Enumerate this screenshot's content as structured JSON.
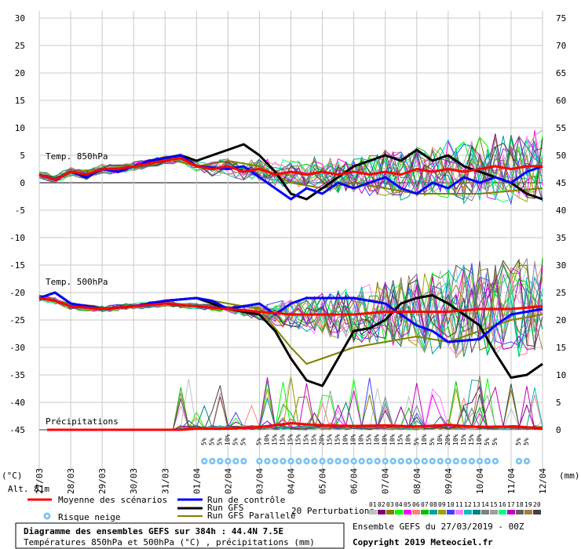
{
  "chart_data": {
    "type": "line",
    "left_axis": {
      "unit": "(°C)",
      "ticks": [
        30,
        25,
        20,
        15,
        10,
        5,
        0,
        -5,
        -10,
        -15,
        -20,
        -25,
        -30,
        -35,
        -40,
        -45
      ],
      "ylim": [
        -45,
        30
      ]
    },
    "right_axis": {
      "unit": "(mm)",
      "ticks": [
        75,
        70,
        65,
        60,
        55,
        50,
        45,
        40,
        35,
        30,
        25,
        20,
        15,
        10,
        5,
        0
      ],
      "ylim": [
        0,
        75
      ]
    },
    "x_labels": [
      "27/03",
      "28/03",
      "29/03",
      "30/03",
      "31/03",
      "01/04",
      "02/04",
      "03/04",
      "04/04",
      "05/04",
      "06/04",
      "07/04",
      "08/04",
      "09/04",
      "10/04",
      "11/04",
      "12/04"
    ],
    "panel_labels": {
      "t850": "Temp. 850hPa",
      "t500": "Temp. 500hPa",
      "precip": "Précipitations"
    },
    "alt_label": "Alt. 81m",
    "snow_risk": [
      {
        "day": 5.25,
        "pct": "5%"
      },
      {
        "day": 5.5,
        "pct": "5%"
      },
      {
        "day": 5.75,
        "pct": "5%"
      },
      {
        "day": 6.0,
        "pct": "10%"
      },
      {
        "day": 6.25,
        "pct": "5%"
      },
      {
        "day": 6.5,
        "pct": "5%"
      },
      {
        "day": 7.0,
        "pct": "5%"
      },
      {
        "day": 7.25,
        "pct": "10%"
      },
      {
        "day": 7.5,
        "pct": "15%"
      },
      {
        "day": 7.75,
        "pct": "15%"
      },
      {
        "day": 8.0,
        "pct": "15%"
      },
      {
        "day": 8.25,
        "pct": "15%"
      },
      {
        "day": 8.5,
        "pct": "15%"
      },
      {
        "day": 8.75,
        "pct": "15%"
      },
      {
        "day": 9.0,
        "pct": "20%"
      },
      {
        "day": 9.25,
        "pct": "15%"
      },
      {
        "day": 9.5,
        "pct": "15%"
      },
      {
        "day": 9.75,
        "pct": "10%"
      },
      {
        "day": 10.0,
        "pct": "10%"
      },
      {
        "day": 10.25,
        "pct": "10%"
      },
      {
        "day": 10.5,
        "pct": "15%"
      },
      {
        "day": 10.75,
        "pct": "10%"
      },
      {
        "day": 11.0,
        "pct": "10%"
      },
      {
        "day": 11.25,
        "pct": "10%"
      },
      {
        "day": 11.5,
        "pct": "15%"
      },
      {
        "day": 11.75,
        "pct": "10%"
      },
      {
        "day": 12.0,
        "pct": "5%"
      },
      {
        "day": 12.25,
        "pct": "10%"
      },
      {
        "day": 12.5,
        "pct": "5%"
      },
      {
        "day": 12.75,
        "pct": "10%"
      },
      {
        "day": 13.0,
        "pct": "20%"
      },
      {
        "day": 13.25,
        "pct": "10%"
      },
      {
        "day": 13.5,
        "pct": "15%"
      },
      {
        "day": 13.75,
        "pct": "15%"
      },
      {
        "day": 14.0,
        "pct": "10%"
      },
      {
        "day": 14.25,
        "pct": "5%"
      },
      {
        "day": 14.5,
        "pct": "5%"
      },
      {
        "day": 15.25,
        "pct": "5%"
      },
      {
        "day": 15.5,
        "pct": "5%"
      }
    ],
    "series": [
      {
        "name": "Moyenne des scénarios",
        "color": "#ff0000",
        "width": 3,
        "t850": [
          [
            0,
            1.5
          ],
          [
            0.5,
            0.5
          ],
          [
            1,
            2
          ],
          [
            1.5,
            1.5
          ],
          [
            2,
            2.5
          ],
          [
            2.5,
            2.5
          ],
          [
            3,
            3
          ],
          [
            3.5,
            3.5
          ],
          [
            4,
            4
          ],
          [
            4.5,
            4.5
          ],
          [
            5,
            3
          ],
          [
            5.5,
            2.5
          ],
          [
            6,
            3
          ],
          [
            6.5,
            2
          ],
          [
            7,
            2.5
          ],
          [
            7.5,
            1.5
          ],
          [
            8,
            2
          ],
          [
            8.5,
            1.5
          ],
          [
            9,
            2
          ],
          [
            9.5,
            1.5
          ],
          [
            10,
            2
          ],
          [
            10.5,
            1.5
          ],
          [
            11,
            2
          ],
          [
            11.5,
            1.5
          ],
          [
            12,
            2.5
          ],
          [
            12.5,
            2
          ],
          [
            13,
            2.5
          ],
          [
            13.5,
            2
          ],
          [
            14,
            2.5
          ],
          [
            14.5,
            3
          ],
          [
            15,
            2.5
          ],
          [
            15.5,
            3
          ],
          [
            16,
            3
          ]
        ],
        "t500": [
          [
            0,
            -21
          ],
          [
            0.5,
            -21.5
          ],
          [
            1,
            -22.5
          ],
          [
            2,
            -23
          ],
          [
            3,
            -22.5
          ],
          [
            4,
            -22
          ],
          [
            5,
            -22.5
          ],
          [
            6,
            -23
          ],
          [
            7,
            -23.5
          ],
          [
            8,
            -24
          ],
          [
            9,
            -24
          ],
          [
            10,
            -24
          ],
          [
            11,
            -23.5
          ],
          [
            12,
            -23.5
          ],
          [
            13,
            -23.5
          ],
          [
            14,
            -23
          ],
          [
            15,
            -23
          ],
          [
            16,
            -22.5
          ]
        ],
        "precip_mm": [
          [
            0.25,
            0
          ],
          [
            4.5,
            0
          ],
          [
            5,
            0.2
          ],
          [
            6,
            0.2
          ],
          [
            7,
            0.5
          ],
          [
            8,
            1.2
          ],
          [
            9,
            0.8
          ],
          [
            10,
            0.7
          ],
          [
            11,
            0.8
          ],
          [
            12,
            0.6
          ],
          [
            13,
            0.9
          ],
          [
            14,
            0.5
          ],
          [
            15,
            0.6
          ],
          [
            16,
            0.3
          ]
        ]
      },
      {
        "name": "Run de contrôle",
        "color": "#0000ff",
        "width": 3,
        "t850": [
          [
            0,
            1.5
          ],
          [
            0.5,
            0.5
          ],
          [
            1,
            2
          ],
          [
            1.5,
            1
          ],
          [
            2,
            2.5
          ],
          [
            2.5,
            2
          ],
          [
            3,
            3
          ],
          [
            3.5,
            4
          ],
          [
            4,
            4.5
          ],
          [
            4.5,
            5
          ],
          [
            5,
            3
          ],
          [
            6,
            2.5
          ],
          [
            6.5,
            3
          ],
          [
            7,
            1
          ],
          [
            7.5,
            -1
          ],
          [
            8,
            -3
          ],
          [
            8.5,
            -1
          ],
          [
            9,
            -2
          ],
          [
            9.5,
            0
          ],
          [
            10,
            -1
          ],
          [
            10.5,
            0
          ],
          [
            11,
            1
          ],
          [
            11.5,
            -1
          ],
          [
            12,
            -2
          ],
          [
            12.5,
            0
          ],
          [
            13,
            -1
          ],
          [
            13.5,
            1
          ],
          [
            14,
            0
          ],
          [
            14.5,
            1
          ],
          [
            15,
            0
          ],
          [
            15.5,
            2
          ],
          [
            16,
            3
          ]
        ],
        "t500": [
          [
            0,
            -21
          ],
          [
            0.5,
            -20
          ],
          [
            1,
            -22
          ],
          [
            2,
            -23
          ],
          [
            3,
            -22.5
          ],
          [
            4,
            -21.5
          ],
          [
            5,
            -21
          ],
          [
            5.5,
            -21.5
          ],
          [
            6,
            -23
          ],
          [
            7,
            -22
          ],
          [
            7.5,
            -24
          ],
          [
            8,
            -22
          ],
          [
            8.5,
            -21
          ],
          [
            9,
            -21
          ],
          [
            10,
            -21
          ],
          [
            11,
            -22
          ],
          [
            12,
            -26
          ],
          [
            12.5,
            -27
          ],
          [
            13,
            -29
          ],
          [
            14,
            -28.5
          ],
          [
            14.5,
            -26
          ],
          [
            15,
            -24
          ],
          [
            16,
            -23
          ]
        ],
        "precip_mm": []
      },
      {
        "name": "Run GFS",
        "color": "#000000",
        "width": 3,
        "t850": [
          [
            0,
            1.5
          ],
          [
            0.5,
            0.5
          ],
          [
            1,
            2
          ],
          [
            1.5,
            1
          ],
          [
            2,
            2.5
          ],
          [
            2.5,
            2
          ],
          [
            3,
            3
          ],
          [
            3.5,
            4
          ],
          [
            4,
            4.5
          ],
          [
            4.5,
            5
          ],
          [
            5,
            4
          ],
          [
            5.5,
            5
          ],
          [
            6,
            6
          ],
          [
            6.5,
            7
          ],
          [
            7,
            5
          ],
          [
            7.5,
            2
          ],
          [
            8,
            -2
          ],
          [
            8.5,
            -3
          ],
          [
            9,
            -1
          ],
          [
            9.5,
            1
          ],
          [
            10,
            3
          ],
          [
            10.5,
            4
          ],
          [
            11,
            5
          ],
          [
            11.5,
            4
          ],
          [
            12,
            6
          ],
          [
            12.5,
            4
          ],
          [
            13,
            5
          ],
          [
            13.5,
            3
          ],
          [
            14,
            2
          ],
          [
            14.5,
            1
          ],
          [
            15,
            0
          ],
          [
            15.5,
            -2
          ],
          [
            16,
            -3
          ]
        ],
        "t500": [
          [
            0,
            -21
          ],
          [
            0.5,
            -20
          ],
          [
            1,
            -22
          ],
          [
            2,
            -23
          ],
          [
            3,
            -22.5
          ],
          [
            4,
            -21.5
          ],
          [
            5,
            -21
          ],
          [
            6,
            -23
          ],
          [
            7,
            -24
          ],
          [
            7.5,
            -27
          ],
          [
            8,
            -32
          ],
          [
            8.5,
            -36
          ],
          [
            9,
            -37
          ],
          [
            9.5,
            -32
          ],
          [
            10,
            -27
          ],
          [
            10.5,
            -26.5
          ],
          [
            11,
            -25
          ],
          [
            11.5,
            -22
          ],
          [
            12,
            -21
          ],
          [
            12.5,
            -20.5
          ],
          [
            13,
            -22
          ],
          [
            13.5,
            -24
          ],
          [
            14,
            -26
          ],
          [
            14.5,
            -31
          ],
          [
            15,
            -35.5
          ],
          [
            15.5,
            -35
          ],
          [
            16,
            -33
          ]
        ],
        "precip_mm": []
      },
      {
        "name": "Run GFS Parallele",
        "color": "#808000",
        "width": 2,
        "t850": [
          [
            0,
            1.5
          ],
          [
            0.5,
            0.5
          ],
          [
            1,
            2
          ],
          [
            2,
            2.5
          ],
          [
            3,
            3
          ],
          [
            4,
            4.5
          ],
          [
            5,
            3
          ],
          [
            6,
            4
          ],
          [
            7,
            3
          ],
          [
            8,
            0
          ],
          [
            9,
            -1
          ],
          [
            10,
            0
          ],
          [
            11,
            -1
          ],
          [
            12,
            -2
          ],
          [
            13,
            -2
          ],
          [
            14,
            -2
          ],
          [
            15,
            -1.5
          ],
          [
            16,
            -1
          ]
        ],
        "t500": [
          [
            0,
            -21
          ],
          [
            1,
            -22
          ],
          [
            2,
            -23
          ],
          [
            3,
            -22.5
          ],
          [
            4,
            -21.5
          ],
          [
            5,
            -21
          ],
          [
            6,
            -22
          ],
          [
            7,
            -23
          ],
          [
            8,
            -30
          ],
          [
            8.5,
            -33
          ],
          [
            9,
            -32
          ],
          [
            10,
            -30
          ],
          [
            11,
            -29
          ],
          [
            12,
            -28
          ],
          [
            13,
            -29
          ],
          [
            14,
            -27
          ],
          [
            15,
            -25
          ],
          [
            16,
            -24
          ]
        ],
        "precip_mm": []
      }
    ]
  },
  "legend": {
    "mean": "Moyenne des scénarios",
    "control": "Run de contrôle",
    "gfs": "Run GFS",
    "gfs_parallel": "Run GFS Parallele",
    "snow_risk": "Risque neige",
    "perturbations": "20 Perturbations",
    "perturbation_numbers": [
      "01",
      "02",
      "03",
      "04",
      "05",
      "06",
      "07",
      "08",
      "09",
      "10",
      "11",
      "12",
      "13",
      "14",
      "15",
      "16",
      "17",
      "18",
      "19",
      "20"
    ],
    "perturbation_colors": [
      "#c0c0c0",
      "#800080",
      "#808000",
      "#00ff00",
      "#ff00ff",
      "#ff8080",
      "#00c000",
      "#00a0a0",
      "#a0a000",
      "#4040ff",
      "#ff80ff",
      "#00c0c0",
      "#008080",
      "#808080",
      "#a0a0a0",
      "#00ff80",
      "#c000c0",
      "#606060",
      "#a08040",
      "#404040"
    ]
  },
  "footer": {
    "title": "Diagramme des ensembles GEFS sur 384h : 44.4N 7.5E",
    "subtitle": "Températures 850hPa et 500hPa (°C) , précipitations (mm)",
    "run": "Ensemble GEFS du 27/03/2019 - 00Z",
    "copyright": "Copyright 2019 Meteociel.fr"
  }
}
